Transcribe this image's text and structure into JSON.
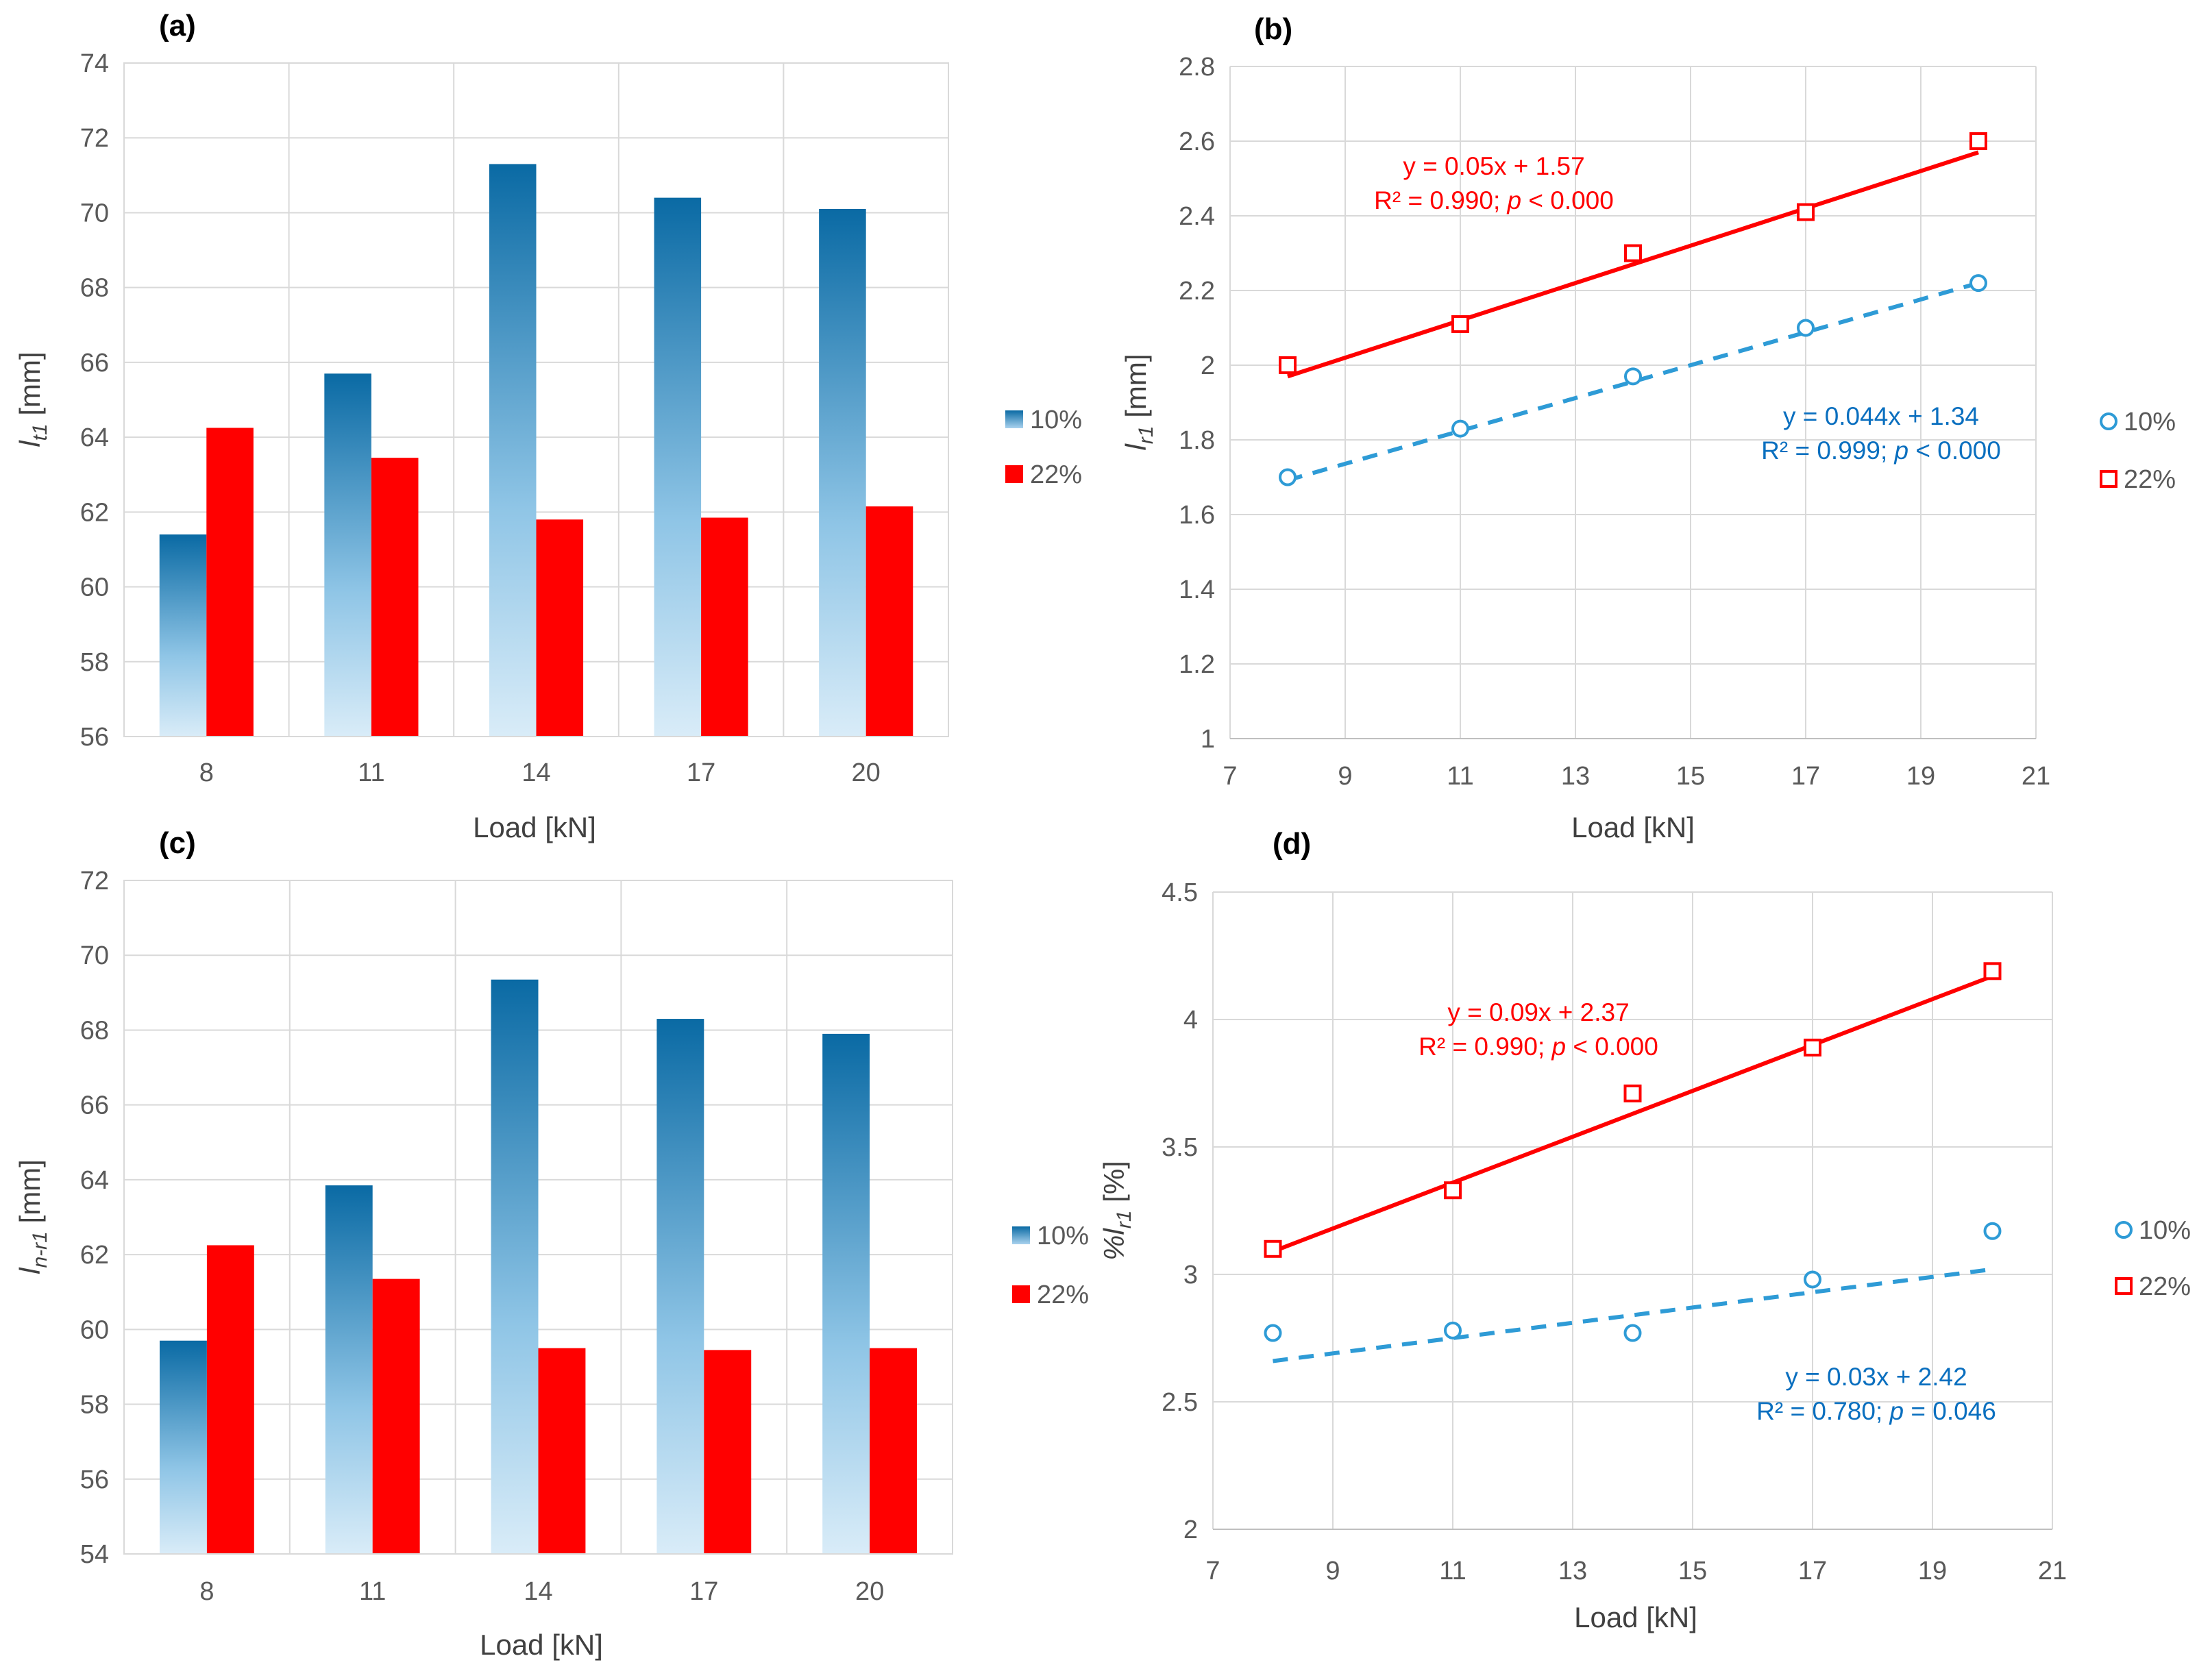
{
  "colors": {
    "series_10": "#2e9bd6",
    "series_22": "#ff0000",
    "bar_10_top": "#0a6aa4",
    "bar_10_mid": "#8fc5e6",
    "bar_10_bottom": "#d9ecf8",
    "grid": "#d9d9d9",
    "eq_10": "#0a6fbf"
  },
  "chart_data": [
    {
      "panel": "(a)",
      "type": "bar",
      "categories": [
        "8",
        "11",
        "14",
        "17",
        "20"
      ],
      "series": [
        {
          "name": "10%",
          "values": [
            61.4,
            65.7,
            71.3,
            70.4,
            70.1
          ]
        },
        {
          "name": "22%",
          "values": [
            64.25,
            63.45,
            61.8,
            61.85,
            62.15
          ]
        }
      ],
      "ylim": [
        56,
        74
      ],
      "yticks": [
        "56",
        "58",
        "60",
        "62",
        "64",
        "66",
        "68",
        "70",
        "72",
        "74"
      ],
      "ylabel_main": "l",
      "ylabel_sub": "t1",
      "ylabel_unit": " [mm]",
      "xlabel": "Load [kN]",
      "legend": [
        "10%",
        "22%"
      ]
    },
    {
      "panel": "(b)",
      "type": "scatter",
      "series": [
        {
          "name": "10%",
          "x": [
            8,
            11,
            14,
            17,
            20
          ],
          "y": [
            1.7,
            1.83,
            1.97,
            2.1,
            2.22
          ],
          "fit": [
            0.044,
            1.34
          ],
          "eq1": "y = 0.044x + 1.34",
          "eq2_pre": "R² = 0.999; ",
          "eq2_p": "p",
          "eq2_post": " < 0.000"
        },
        {
          "name": "22%",
          "x": [
            8,
            11,
            14,
            17,
            20
          ],
          "y": [
            2.0,
            2.11,
            2.3,
            2.41,
            2.6
          ],
          "fit": [
            0.05,
            1.57
          ],
          "eq1": "y = 0.05x + 1.57",
          "eq2_pre": "R² = 0.990; ",
          "eq2_p": "p",
          "eq2_post": " < 0.000"
        }
      ],
      "xlim": [
        7,
        21
      ],
      "ylim": [
        1,
        2.8
      ],
      "xticks": [
        "7",
        "9",
        "11",
        "13",
        "15",
        "17",
        "19",
        "21"
      ],
      "yticks": [
        "1",
        "1.2",
        "1.4",
        "1.6",
        "1.8",
        "2",
        "2.2",
        "2.4",
        "2.6",
        "2.8"
      ],
      "ylabel_main": "l",
      "ylabel_sub": "r1",
      "ylabel_unit": " [mm]",
      "xlabel": "Load [kN]",
      "legend": [
        "10%",
        "22%"
      ]
    },
    {
      "panel": "(c)",
      "type": "bar",
      "categories": [
        "8",
        "11",
        "14",
        "17",
        "20"
      ],
      "series": [
        {
          "name": "10%",
          "values": [
            59.7,
            63.85,
            69.35,
            68.3,
            67.9
          ]
        },
        {
          "name": "22%",
          "values": [
            62.25,
            61.35,
            59.5,
            59.45,
            59.5
          ]
        }
      ],
      "ylim": [
        54,
        72
      ],
      "yticks": [
        "54",
        "56",
        "58",
        "60",
        "62",
        "64",
        "66",
        "68",
        "70",
        "72"
      ],
      "ylabel_main": "l",
      "ylabel_sub": "n-r1",
      "ylabel_unit": " [mm]",
      "xlabel": "Load [kN]",
      "legend": [
        "10%",
        "22%"
      ]
    },
    {
      "panel": "(d)",
      "type": "scatter",
      "series": [
        {
          "name": "10%",
          "x": [
            8,
            11,
            14,
            17,
            20
          ],
          "y": [
            2.77,
            2.78,
            2.77,
            2.98,
            3.17
          ],
          "fit": [
            0.03,
            2.42
          ],
          "eq1": "y = 0.03x + 2.42",
          "eq2_pre": "R² = 0.780; ",
          "eq2_p": "p",
          "eq2_post": " = 0.046"
        },
        {
          "name": "22%",
          "x": [
            8,
            11,
            14,
            17,
            20
          ],
          "y": [
            3.1,
            3.33,
            3.71,
            3.89,
            4.19
          ],
          "fit": [
            0.09,
            2.37
          ],
          "eq1": "y = 0.09x + 2.37",
          "eq2_pre": "R² = 0.990; ",
          "eq2_p": "p",
          "eq2_post": " < 0.000"
        }
      ],
      "xlim": [
        7,
        21
      ],
      "ylim": [
        2,
        4.5
      ],
      "xticks": [
        "7",
        "9",
        "11",
        "13",
        "15",
        "17",
        "19",
        "21"
      ],
      "yticks": [
        "2",
        "2.5",
        "3",
        "3.5",
        "4",
        "4.5"
      ],
      "ylabel_main": "%l",
      "ylabel_sub": "r1",
      "ylabel_unit": " [%]",
      "xlabel": "Load [kN]",
      "legend": [
        "10%",
        "22%"
      ]
    }
  ]
}
